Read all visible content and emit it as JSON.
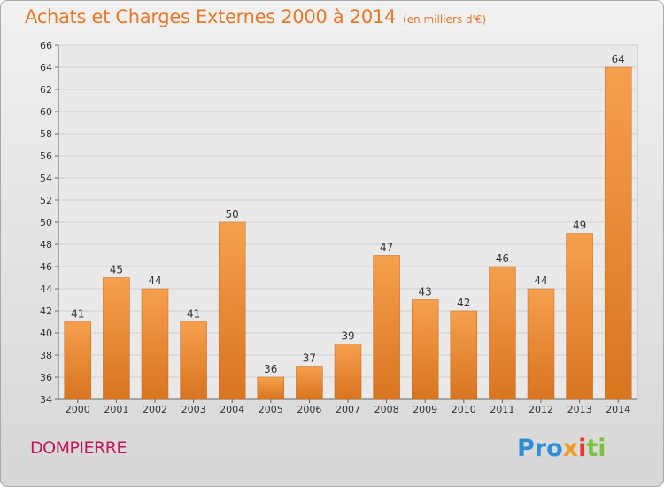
{
  "header": {
    "title": "Achats et Charges Externes 2000 à 2014",
    "unit": "(en milliers d'€)"
  },
  "footer": {
    "commune": "DOMPIERRE",
    "logo_parts": [
      "Pro",
      "x",
      "i",
      "ti"
    ]
  },
  "colors": {
    "bar_top": "#f5a04e",
    "bar_bottom": "#d9741f",
    "title": "#e8782a",
    "commune": "#c2185b"
  },
  "chart_data": {
    "type": "bar",
    "title": "Achats et Charges Externes 2000 à 2014",
    "subtitle": "(en milliers d'€)",
    "categories": [
      "2000",
      "2001",
      "2002",
      "2003",
      "2004",
      "2005",
      "2006",
      "2007",
      "2008",
      "2009",
      "2010",
      "2011",
      "2012",
      "2013",
      "2014"
    ],
    "values": [
      41,
      45,
      44,
      41,
      50,
      36,
      37,
      39,
      47,
      43,
      42,
      46,
      44,
      49,
      64
    ],
    "ylim": [
      34,
      66
    ],
    "ytick_step": 2,
    "grid": true,
    "legend": "none"
  }
}
